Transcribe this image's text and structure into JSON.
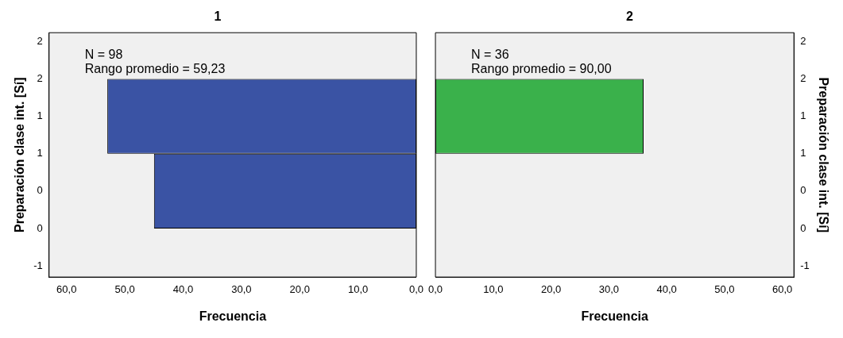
{
  "chart_data": [
    {
      "type": "histogram",
      "orientation": "horizontal",
      "title": "1",
      "xlabel": "Frecuencia",
      "ylabel": "Preparación clase int. [Sí]",
      "bins": [
        -0.5,
        0.5,
        1.5
      ],
      "values": [
        45,
        53
      ],
      "color": "#3a53a4",
      "xlim": [
        63,
        0
      ],
      "xticks": [
        {
          "value": 60,
          "label": "60,0"
        },
        {
          "value": 50,
          "label": "50,0"
        },
        {
          "value": 40,
          "label": "40,0"
        },
        {
          "value": 30,
          "label": "30,0"
        },
        {
          "value": 20,
          "label": "20,0"
        },
        {
          "value": 10,
          "label": "10,0"
        },
        {
          "value": 0,
          "label": "0,0"
        }
      ],
      "ylim": [
        -1.15,
        2.12
      ],
      "yticks": [
        -1,
        {
          "value": -0.5,
          "label": "0"
        },
        0,
        {
          "value": 0.5,
          "label": "1"
        },
        1,
        {
          "value": 1.5,
          "label": "2"
        },
        2
      ],
      "grid": false,
      "legend": false,
      "annotations": [
        "N = 98",
        "Rango promedio = 59,23"
      ]
    },
    {
      "type": "histogram",
      "orientation": "horizontal",
      "title": "2",
      "xlabel": "Frecuencia",
      "ylabel": "Preparación clase int. [Sí]",
      "bins": [
        -0.5,
        0.5,
        1.5
      ],
      "values": [
        0,
        36
      ],
      "color": "#3ab14b",
      "xlim": [
        0,
        62
      ],
      "xticks": [
        {
          "value": 0,
          "label": "0,0"
        },
        {
          "value": 10,
          "label": "10,0"
        },
        {
          "value": 20,
          "label": "20,0"
        },
        {
          "value": 30,
          "label": "30,0"
        },
        {
          "value": 40,
          "label": "40,0"
        },
        {
          "value": 50,
          "label": "50,0"
        },
        {
          "value": 60,
          "label": "60,0"
        }
      ],
      "ylim": [
        -1.15,
        2.12
      ],
      "yticks": [
        -1,
        {
          "value": -0.5,
          "label": "0"
        },
        0,
        {
          "value": 0.5,
          "label": "1"
        },
        1,
        {
          "value": 1.5,
          "label": "2"
        },
        2
      ],
      "grid": false,
      "legend": false,
      "annotations": [
        "N = 36",
        "Rango promedio = 90,00"
      ]
    }
  ]
}
